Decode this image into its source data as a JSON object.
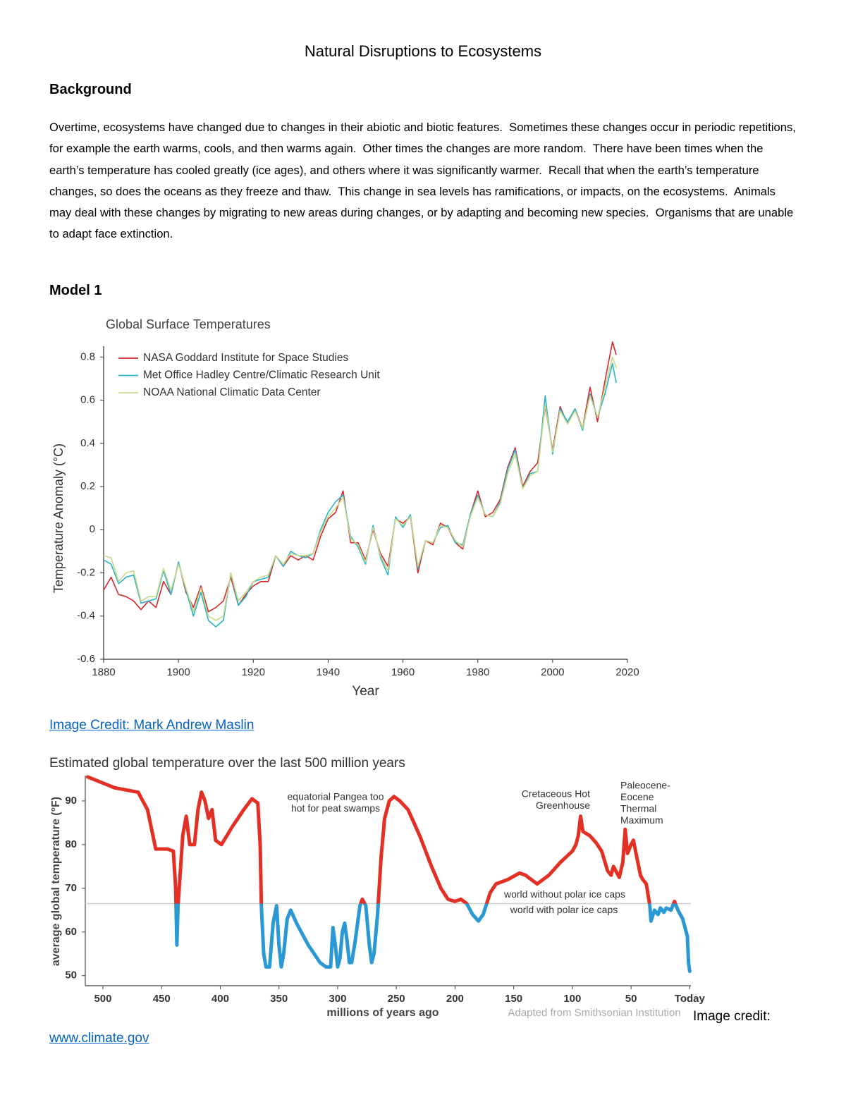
{
  "title": "Natural Disruptions to Ecosystems",
  "background": {
    "heading": "Background",
    "text": "Overtime, ecosystems have changed due to changes in their abiotic and biotic features.  Sometimes these changes occur in periodic repetitions, for example the earth warms, cools, and then warms again.  Other times the changes are more random.  There have been times when the earth’s temperature has cooled greatly (ice ages), and others where it was significantly warmer.  Recall that when the earth’s temperature changes, so does the oceans as they freeze and thaw.  This change in sea levels has ramifications, or impacts, on the ecosystems.  Animals may deal with these changes by migrating to new areas during changes, or by adapting and becoming new species.  Organisms that are unable to adapt face extinction."
  },
  "model_heading": "Model 1",
  "credit_1": "Image Credit: Mark Andrew Maslin",
  "credit_2_label": "Image credit:",
  "credit_2_link": "www.climate.gov",
  "chart_data": [
    {
      "type": "line",
      "title": "Global Surface Temperatures",
      "x_label": "Year",
      "y_label": "Temperature Anomaly (°C)",
      "legend": "upper left",
      "xlim": [
        1880,
        2020
      ],
      "xticks": [
        1880,
        1900,
        1920,
        1940,
        1960,
        1980,
        2000,
        2020
      ],
      "ylim": [
        -0.6,
        0.85
      ],
      "yticks": [
        -0.6,
        -0.4,
        -0.2,
        0,
        0.2,
        0.4,
        0.6,
        0.8
      ],
      "x": [
        1880,
        1882,
        1884,
        1886,
        1888,
        1890,
        1892,
        1894,
        1896,
        1898,
        1900,
        1902,
        1904,
        1906,
        1908,
        1910,
        1912,
        1914,
        1916,
        1918,
        1920,
        1922,
        1924,
        1926,
        1928,
        1930,
        1932,
        1934,
        1936,
        1938,
        1940,
        1942,
        1944,
        1946,
        1948,
        1950,
        1952,
        1954,
        1956,
        1958,
        1960,
        1962,
        1964,
        1966,
        1968,
        1970,
        1972,
        1974,
        1976,
        1978,
        1980,
        1982,
        1984,
        1986,
        1988,
        1990,
        1992,
        1994,
        1996,
        1998,
        2000,
        2002,
        2004,
        2006,
        2008,
        2010,
        2012,
        2014,
        2016,
        2017
      ],
      "series": [
        {
          "name": "NASA Goddard Institute for Space Studies",
          "color": "#d7262b",
          "values": [
            -0.28,
            -0.22,
            -0.3,
            -0.31,
            -0.33,
            -0.37,
            -0.33,
            -0.36,
            -0.24,
            -0.3,
            -0.15,
            -0.29,
            -0.36,
            -0.26,
            -0.38,
            -0.36,
            -0.33,
            -0.22,
            -0.35,
            -0.3,
            -0.26,
            -0.24,
            -0.24,
            -0.12,
            -0.17,
            -0.12,
            -0.14,
            -0.12,
            -0.14,
            -0.03,
            0.05,
            0.08,
            0.18,
            -0.06,
            -0.06,
            -0.14,
            0.0,
            -0.11,
            -0.17,
            0.05,
            0.03,
            0.06,
            -0.2,
            -0.05,
            -0.07,
            0.03,
            0.01,
            -0.06,
            -0.09,
            0.07,
            0.18,
            0.06,
            0.08,
            0.14,
            0.29,
            0.38,
            0.2,
            0.27,
            0.31,
            0.57,
            0.37,
            0.57,
            0.49,
            0.56,
            0.47,
            0.66,
            0.5,
            0.69,
            0.87,
            0.81
          ]
        },
        {
          "name": "Met Office Hadley Centre/Climatic Research Unit",
          "color": "#29b3c9",
          "values": [
            -0.14,
            -0.16,
            -0.25,
            -0.22,
            -0.21,
            -0.34,
            -0.33,
            -0.32,
            -0.19,
            -0.3,
            -0.15,
            -0.28,
            -0.4,
            -0.29,
            -0.42,
            -0.45,
            -0.42,
            -0.2,
            -0.35,
            -0.31,
            -0.24,
            -0.23,
            -0.22,
            -0.12,
            -0.17,
            -0.1,
            -0.12,
            -0.13,
            -0.11,
            0.0,
            0.08,
            0.13,
            0.16,
            -0.03,
            -0.08,
            -0.16,
            0.02,
            -0.13,
            -0.21,
            0.06,
            0.01,
            0.07,
            -0.18,
            -0.05,
            -0.06,
            0.01,
            0.02,
            -0.06,
            -0.07,
            0.07,
            0.16,
            0.07,
            0.06,
            0.13,
            0.28,
            0.37,
            0.19,
            0.26,
            0.27,
            0.62,
            0.35,
            0.56,
            0.5,
            0.56,
            0.46,
            0.63,
            0.52,
            0.63,
            0.77,
            0.68
          ]
        },
        {
          "name": "NOAA National Climatic Data Center",
          "color": "#c8d98a",
          "values": [
            -0.12,
            -0.13,
            -0.24,
            -0.2,
            -0.19,
            -0.33,
            -0.31,
            -0.31,
            -0.18,
            -0.28,
            -0.16,
            -0.27,
            -0.38,
            -0.27,
            -0.4,
            -0.42,
            -0.4,
            -0.2,
            -0.33,
            -0.29,
            -0.24,
            -0.22,
            -0.21,
            -0.12,
            -0.16,
            -0.11,
            -0.12,
            -0.12,
            -0.11,
            -0.01,
            0.06,
            0.1,
            0.15,
            -0.04,
            -0.07,
            -0.15,
            0.01,
            -0.12,
            -0.19,
            0.05,
            0.02,
            0.06,
            -0.17,
            -0.05,
            -0.06,
            0.02,
            0.01,
            -0.05,
            -0.08,
            0.06,
            0.15,
            0.07,
            0.06,
            0.12,
            0.26,
            0.35,
            0.19,
            0.25,
            0.27,
            0.58,
            0.36,
            0.55,
            0.49,
            0.55,
            0.47,
            0.62,
            0.52,
            0.66,
            0.8,
            0.75
          ]
        }
      ]
    },
    {
      "type": "line",
      "title": "Estimated global temperature over the last 500 million years",
      "x_label": "millions of years ago",
      "y_label": "average global temperature (°F)",
      "source": "Adapted from Smithsonian Institution",
      "xlim": [
        515,
        -1
      ],
      "xticks": [
        500,
        450,
        400,
        350,
        300,
        250,
        200,
        150,
        100,
        50,
        {
          "value": 0,
          "label": "Today"
        }
      ],
      "ylim": [
        47.7,
        95.8
      ],
      "yticks": [
        50,
        60,
        70,
        80,
        90
      ],
      "threshold": 66.5,
      "threshold_labels": [
        "world without polar ice caps",
        "world with polar ice caps"
      ],
      "colors": {
        "above": "#e42f24",
        "below": "#2a98d3",
        "threshold": "#cfcfcf"
      },
      "annotations": [
        [
          "equatorial Pangea too",
          "hot for peat swamps"
        ],
        [
          "Cretaceous Hot",
          "Greenhouse"
        ],
        [
          "Paleocene-",
          "Eocene",
          "Thermal",
          "Maximum"
        ]
      ],
      "x": [
        513,
        490,
        470,
        462,
        455,
        445,
        440,
        438,
        437,
        436,
        432,
        429,
        426,
        422,
        419,
        416,
        413,
        410,
        407,
        404,
        399,
        390,
        380,
        373,
        368,
        366,
        365,
        363,
        361,
        358,
        355,
        352,
        350,
        348,
        346,
        343,
        340,
        335,
        325,
        315,
        310,
        306,
        304,
        302,
        300,
        298,
        296,
        294,
        292,
        290,
        288,
        285,
        281,
        279,
        276,
        273,
        271,
        269,
        266,
        263,
        260,
        256,
        252,
        247,
        240,
        230,
        220,
        212,
        206,
        200,
        195,
        190,
        185,
        180,
        176,
        170,
        165,
        155,
        145,
        140,
        130,
        120,
        110,
        100,
        97,
        95,
        93,
        91,
        85,
        80,
        75,
        70,
        67,
        65,
        60,
        57,
        55,
        53,
        50,
        48,
        45,
        42,
        40,
        37,
        34,
        33,
        30,
        27,
        25,
        22,
        20,
        16,
        13,
        10,
        6,
        4,
        2,
        1,
        0
      ],
      "values": [
        95.5,
        93,
        92,
        88,
        79,
        79,
        78.5,
        70,
        57,
        66,
        82,
        86.5,
        80,
        80,
        88,
        92,
        90,
        86,
        88,
        81,
        80,
        84,
        88,
        90.5,
        89.5,
        80,
        66,
        55,
        52,
        52,
        62,
        66,
        57,
        52,
        55,
        63,
        65,
        62,
        57,
        53,
        52,
        52,
        61,
        57,
        52,
        54,
        60,
        62,
        58,
        53,
        53,
        58,
        66,
        67.5,
        66,
        57,
        53,
        55,
        64,
        77,
        86,
        90,
        91,
        90,
        88,
        82,
        75,
        70,
        67.5,
        67,
        67.5,
        66.5,
        64,
        62.5,
        64,
        69,
        71,
        72,
        73.5,
        73,
        71,
        73,
        76,
        78.5,
        80,
        82,
        86.5,
        83,
        82,
        80.5,
        78.5,
        74,
        73,
        75,
        72.5,
        76,
        83.5,
        78,
        80,
        81,
        77,
        73,
        72,
        71,
        66,
        62.5,
        65,
        64,
        65.5,
        64.5,
        65.5,
        65,
        67,
        65,
        63,
        61,
        59,
        53,
        51
      ]
    }
  ]
}
